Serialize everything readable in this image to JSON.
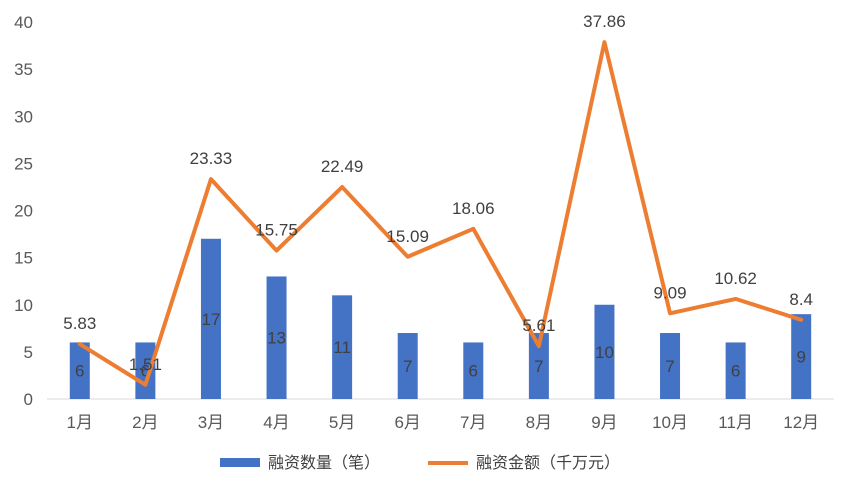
{
  "chart_data": {
    "type": "bar",
    "categories": [
      "1月",
      "2月",
      "3月",
      "4月",
      "5月",
      "6月",
      "7月",
      "8月",
      "9月",
      "10月",
      "11月",
      "12月"
    ],
    "series": [
      {
        "name": "融资数量（笔）",
        "type": "bar",
        "color": "#4472C4",
        "values": [
          6,
          6,
          17,
          13,
          11,
          7,
          6,
          7,
          10,
          7,
          6,
          9
        ],
        "labels": [
          "6",
          "6",
          "17",
          "13",
          "11",
          "7",
          "6",
          "7",
          "10",
          "7",
          "6",
          "9"
        ]
      },
      {
        "name": "融资金额（千万元）",
        "type": "line",
        "color": "#ED7D31",
        "values": [
          5.83,
          1.51,
          23.33,
          15.75,
          22.49,
          15.09,
          18.06,
          5.61,
          37.86,
          9.09,
          10.62,
          8.4
        ],
        "labels": [
          "5.83",
          "1.51",
          "23.33",
          "15.75",
          "22.49",
          "15.09",
          "18.06",
          "5.61",
          "37.86",
          "9.09",
          "10.62",
          "8.4"
        ]
      }
    ],
    "ylim": [
      0,
      40
    ],
    "yticks": [
      "0",
      "5",
      "10",
      "15",
      "20",
      "25",
      "30",
      "35",
      "40"
    ],
    "grid": false,
    "legend": "bottom"
  }
}
